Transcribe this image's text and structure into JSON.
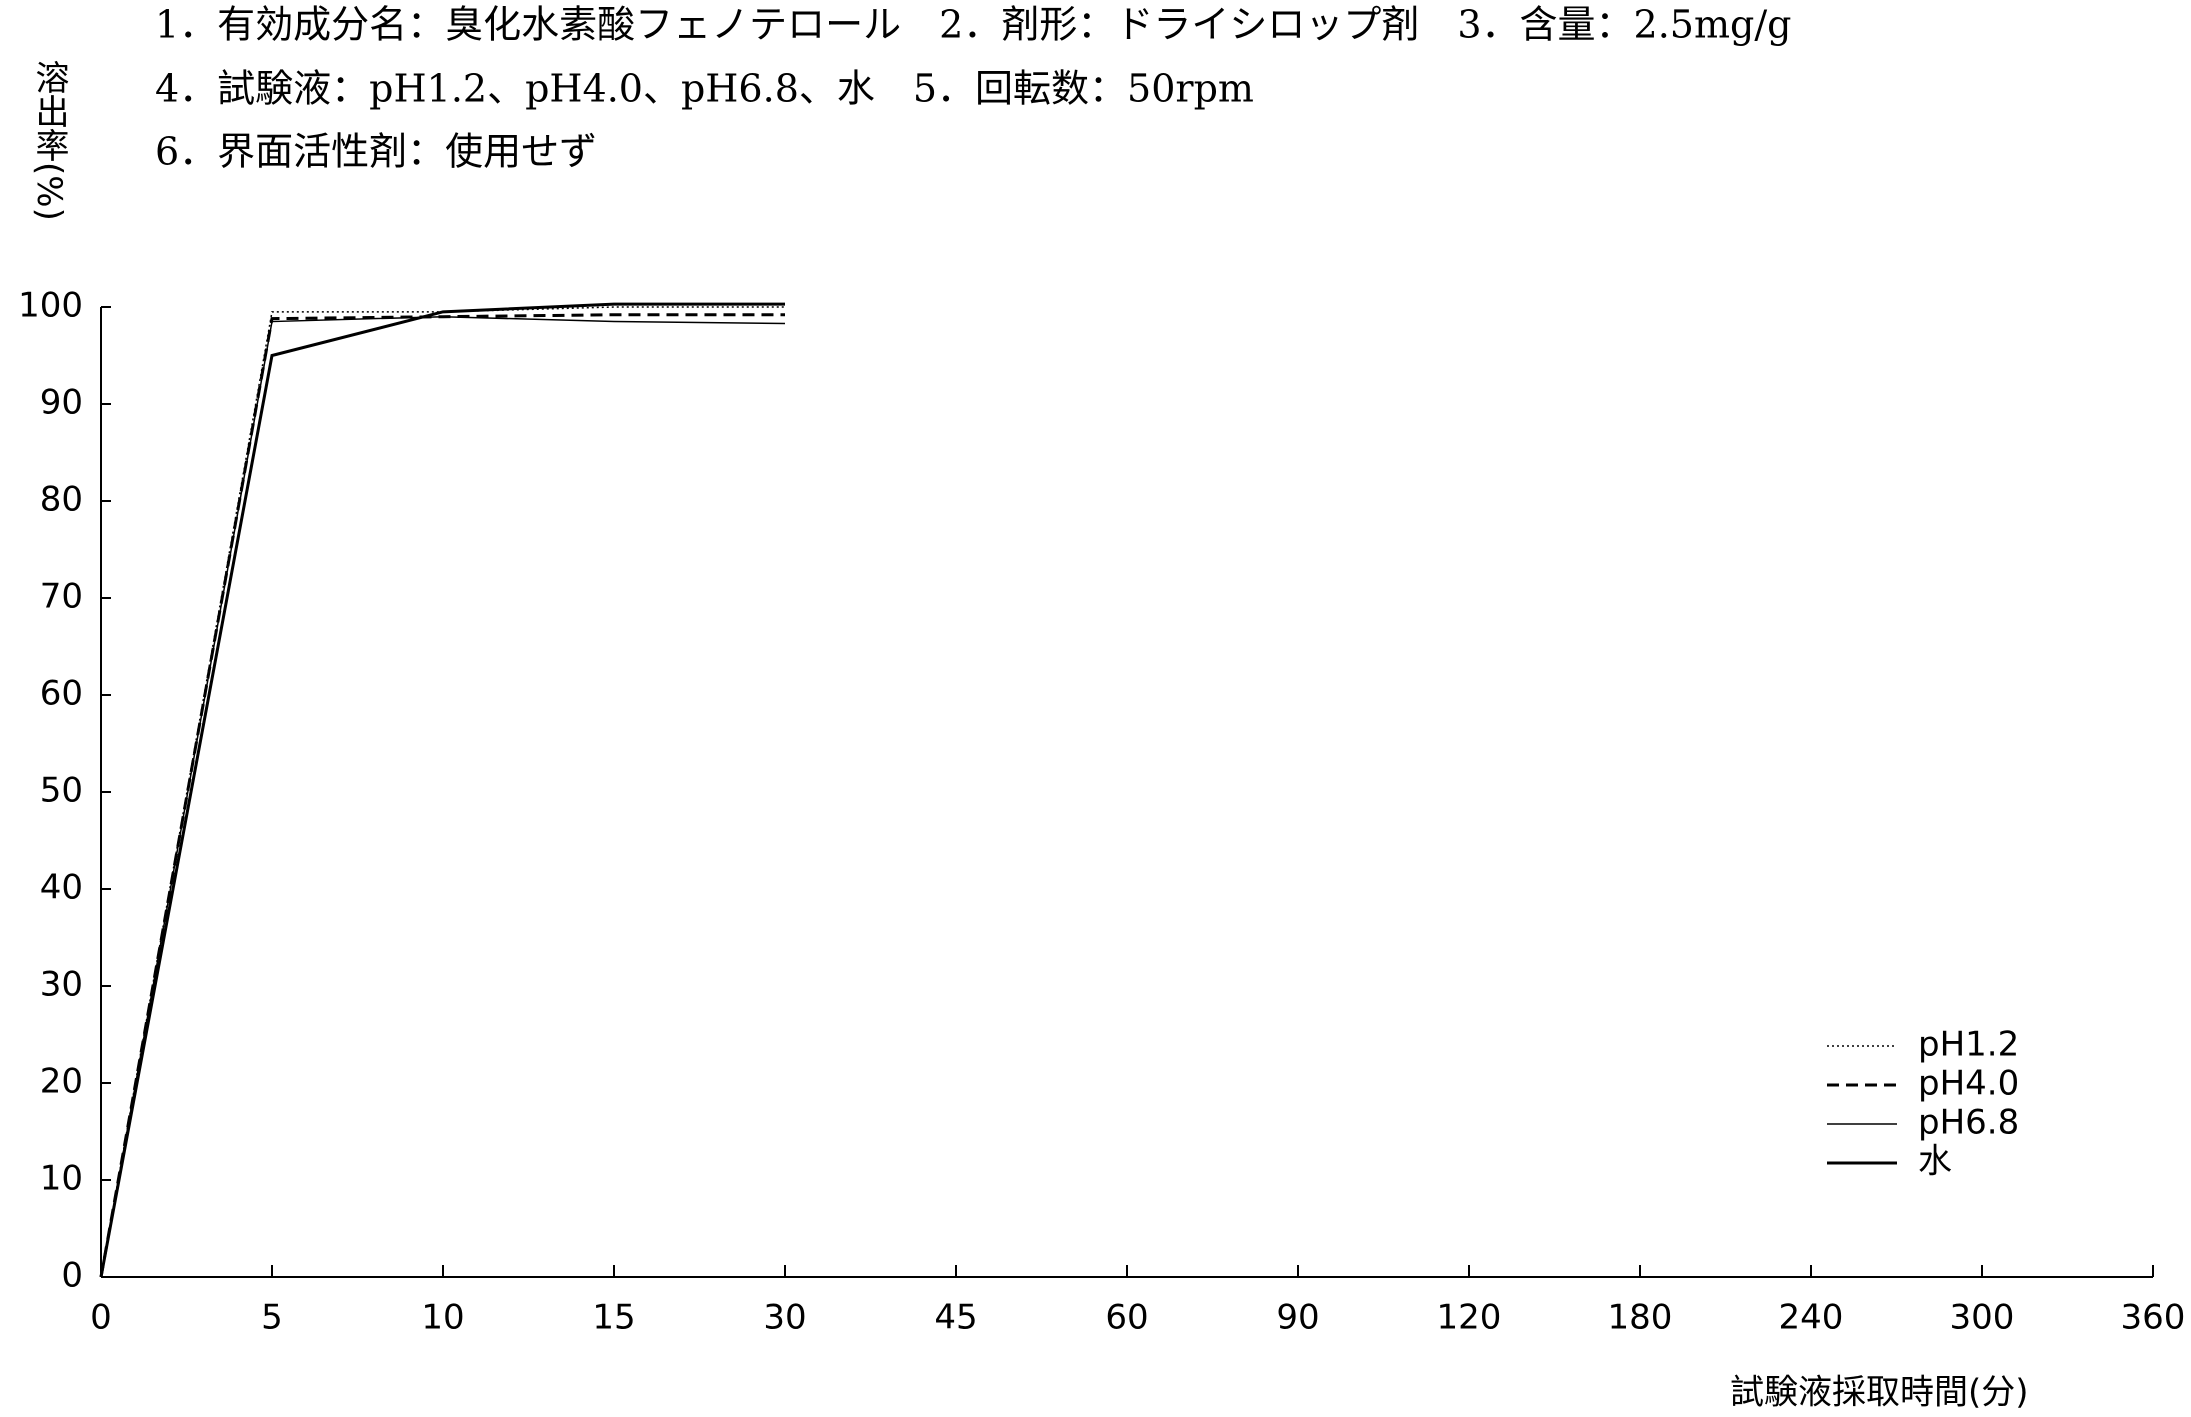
{
  "chart_data": {
    "type": "line",
    "title_lines": [
      "1．有効成分名：臭化水素酸フェノテロール　2．剤形：ドライシロップ剤　3．含量：2.5mg/g",
      "4．試験液：pH1.2、pH4.0、pH6.8、水　5．回転数：50rpm",
      "6．界面活性剤：使用せず"
    ],
    "y_label": "溶出率(%)",
    "x_label": "試験液採取時間(分)",
    "categories": [
      "0",
      "5",
      "10",
      "15",
      "30",
      "45",
      "60",
      "90",
      "120",
      "180",
      "240",
      "300",
      "360"
    ],
    "series": [
      {
        "name": "pH1.2",
        "color": "#000000",
        "style": "dotted",
        "values": [
          0,
          99.5,
          99.5,
          100,
          100,
          null,
          null,
          null,
          null,
          null,
          null,
          null,
          null
        ]
      },
      {
        "name": "pH4.0",
        "color": "#000000",
        "style": "dashed",
        "values": [
          0,
          98.8,
          99,
          99.2,
          99.2,
          null,
          null,
          null,
          null,
          null,
          null,
          null,
          null
        ]
      },
      {
        "name": "pH6.8",
        "color": "#000000",
        "style": "thin",
        "values": [
          0,
          98.5,
          99,
          98.5,
          98.3,
          null,
          null,
          null,
          null,
          null,
          null,
          null,
          null
        ]
      },
      {
        "name": "水",
        "color": "#000000",
        "style": "thick",
        "values": [
          0,
          95,
          99.5,
          100.3,
          100.3,
          null,
          null,
          null,
          null,
          null,
          null,
          null,
          null
        ]
      }
    ],
    "ylim": [
      0,
      100
    ],
    "yticks": [
      0,
      10,
      20,
      30,
      40,
      50,
      60,
      70,
      80,
      90,
      100
    ],
    "legend": "lower-right"
  }
}
